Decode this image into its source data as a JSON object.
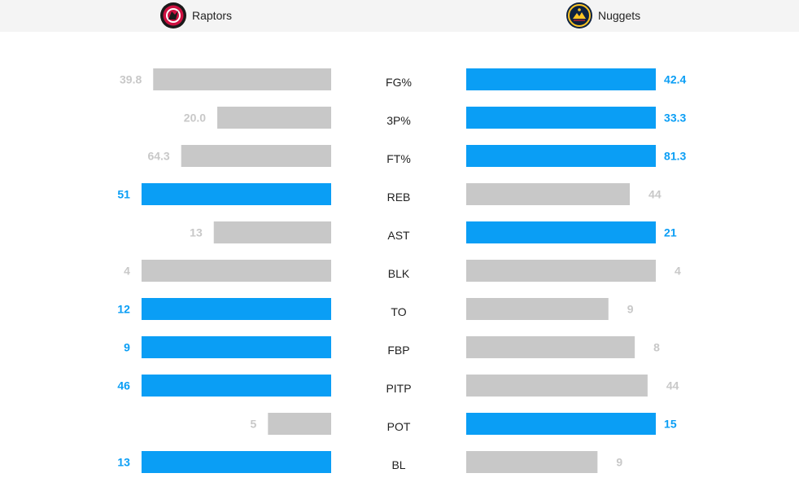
{
  "header": {
    "left_team": {
      "name": "Raptors",
      "logo": "raptors-logo-icon"
    },
    "right_team": {
      "name": "Nuggets",
      "logo": "nuggets-logo-icon"
    }
  },
  "colors": {
    "leader": "#0a9ef5",
    "other": "#c8c8c8",
    "other_text": "#c8c8c8",
    "header_bg": "#f4f4f4"
  },
  "chart_data": {
    "type": "bar",
    "orientation": "diverging-horizontal",
    "categories": [
      "FG%",
      "3P%",
      "FT%",
      "REB",
      "AST",
      "BLK",
      "TO",
      "FBP",
      "PITP",
      "POT",
      "BL"
    ],
    "series": [
      {
        "name": "Raptors",
        "values": [
          39.8,
          20.0,
          64.3,
          51,
          13,
          4,
          12,
          9,
          46,
          5,
          13
        ],
        "labels": [
          "39.8",
          "20.0",
          "64.3",
          "51",
          "13",
          "4",
          "12",
          "9",
          "46",
          "5",
          "13"
        ]
      },
      {
        "name": "Nuggets",
        "values": [
          42.4,
          33.3,
          81.3,
          44,
          21,
          4,
          9,
          8,
          44,
          15,
          9
        ],
        "labels": [
          "42.4",
          "33.3",
          "81.3",
          "44",
          "21",
          "4",
          "9",
          "8",
          "44",
          "15",
          "9"
        ]
      }
    ],
    "highlight": [
      "right",
      "right",
      "right",
      "left",
      "right",
      "none",
      "left",
      "left",
      "left",
      "right",
      "left"
    ]
  }
}
